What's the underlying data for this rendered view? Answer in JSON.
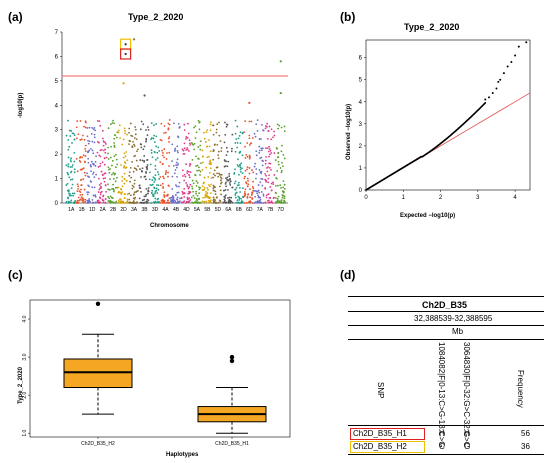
{
  "panel_labels": {
    "a": "(a)",
    "b": "(b)",
    "c": "(c)",
    "d": "(d)"
  },
  "chart_data": [
    {
      "type": "scatter",
      "panel": "a",
      "title": "Type_2_2020",
      "xlabel": "Chromosome",
      "ylabel": "-log10(p)",
      "ylim": [
        0,
        7
      ],
      "yticks": [
        "0",
        "1",
        "2",
        "3",
        "4",
        "5",
        "6",
        "7"
      ],
      "categories": [
        "1A",
        "1B",
        "1D",
        "2A",
        "2B",
        "2D",
        "3A",
        "3B",
        "3D",
        "4A",
        "4B",
        "4D",
        "5A",
        "5B",
        "5D",
        "6A",
        "6B",
        "6D",
        "7A",
        "7B",
        "7D"
      ],
      "threshold": 5.2,
      "highlighted_points": [
        {
          "chromosome": "2D",
          "y": 6.5,
          "color": "#f0c000"
        },
        {
          "chromosome": "2D",
          "y": 6.1,
          "color": "#e02020"
        }
      ],
      "peak_points": [
        {
          "chromosome": "3A",
          "y": 6.7
        },
        {
          "chromosome": "7D",
          "y": 5.8
        },
        {
          "chromosome": "2D",
          "y": 4.9
        },
        {
          "chromosome": "7D",
          "y": 4.5
        },
        {
          "chromosome": "3B",
          "y": 4.4
        },
        {
          "chromosome": "6D",
          "y": 4.1
        }
      ],
      "colors": [
        "#1f9e89",
        "#e8542b",
        "#6b6ec9",
        "#e03a8a",
        "#5aa02c",
        "#d9a400",
        "#8c6d31",
        "#555555",
        "#1f9e89",
        "#e8542b",
        "#6b6ec9",
        "#e03a8a",
        "#5aa02c",
        "#d9a400",
        "#8c6d31",
        "#555555",
        "#1f9e89",
        "#e8542b",
        "#6b6ec9",
        "#e03a8a",
        "#5aa02c"
      ]
    },
    {
      "type": "scatter",
      "panel": "b",
      "title": "Type_2_2020",
      "xlabel": "Expected −log10(p)",
      "ylabel": "Observed −log10(p)",
      "xlim": [
        0,
        4.4
      ],
      "ylim": [
        0,
        6.8
      ],
      "xticks": [
        "0",
        "1",
        "2",
        "3",
        "4"
      ],
      "yticks": [
        "0",
        "1",
        "2",
        "3",
        "4",
        "5",
        "6"
      ],
      "reference_line": {
        "x": [
          0,
          4.4
        ],
        "y": [
          0,
          4.4
        ],
        "color": "#e05050"
      },
      "tail_points": [
        [
          3.2,
          4.1
        ],
        [
          3.3,
          4.2
        ],
        [
          3.4,
          4.4
        ],
        [
          3.5,
          4.6
        ],
        [
          3.55,
          4.9
        ],
        [
          3.6,
          5.0
        ],
        [
          3.7,
          5.3
        ],
        [
          3.8,
          5.6
        ],
        [
          3.9,
          5.8
        ],
        [
          4.0,
          6.1
        ],
        [
          4.1,
          6.5
        ],
        [
          4.3,
          6.7
        ]
      ]
    },
    {
      "type": "box",
      "panel": "c",
      "title": "",
      "xlabel": "Haplotypes",
      "ylabel": "Type_2_2020",
      "ylim": [
        0.9,
        4.5
      ],
      "yticks": [
        "1.0",
        "2.0",
        "3.0",
        "4.0"
      ],
      "categories": [
        "Ch2D_B35_H2",
        "Ch2D_B35_H1"
      ],
      "boxes": [
        {
          "name": "Ch2D_B35_H2",
          "min": 1.5,
          "q1": 2.2,
          "median": 2.6,
          "q3": 2.95,
          "max": 3.6,
          "outliers": [
            4.4
          ],
          "color": "#f5a623"
        },
        {
          "name": "Ch2D_B35_H1",
          "min": 1.0,
          "q1": 1.3,
          "median": 1.5,
          "q3": 1.7,
          "max": 2.2,
          "outliers": [
            2.9,
            3.0
          ],
          "color": "#f5a623"
        }
      ]
    }
  ],
  "table": {
    "title": "Ch2D_B35",
    "range": "32,388539-32,388595",
    "unit": "Mb",
    "snp_header": "SNP",
    "snp_columns": [
      "1084082|F|0-13:C>G-13:C>G",
      "3064830|F|0-32:G>C-32:G>C"
    ],
    "frequency_header": "Frequency",
    "rows": [
      {
        "name": "Ch2D_B35_H1",
        "alleles": [
          "H",
          "H"
        ],
        "frequency": "56",
        "box_color": "#e02020"
      },
      {
        "name": "Ch2D_B35_H2",
        "alleles": [
          "C",
          "G"
        ],
        "frequency": "36",
        "box_color": "#f0c000"
      }
    ]
  }
}
